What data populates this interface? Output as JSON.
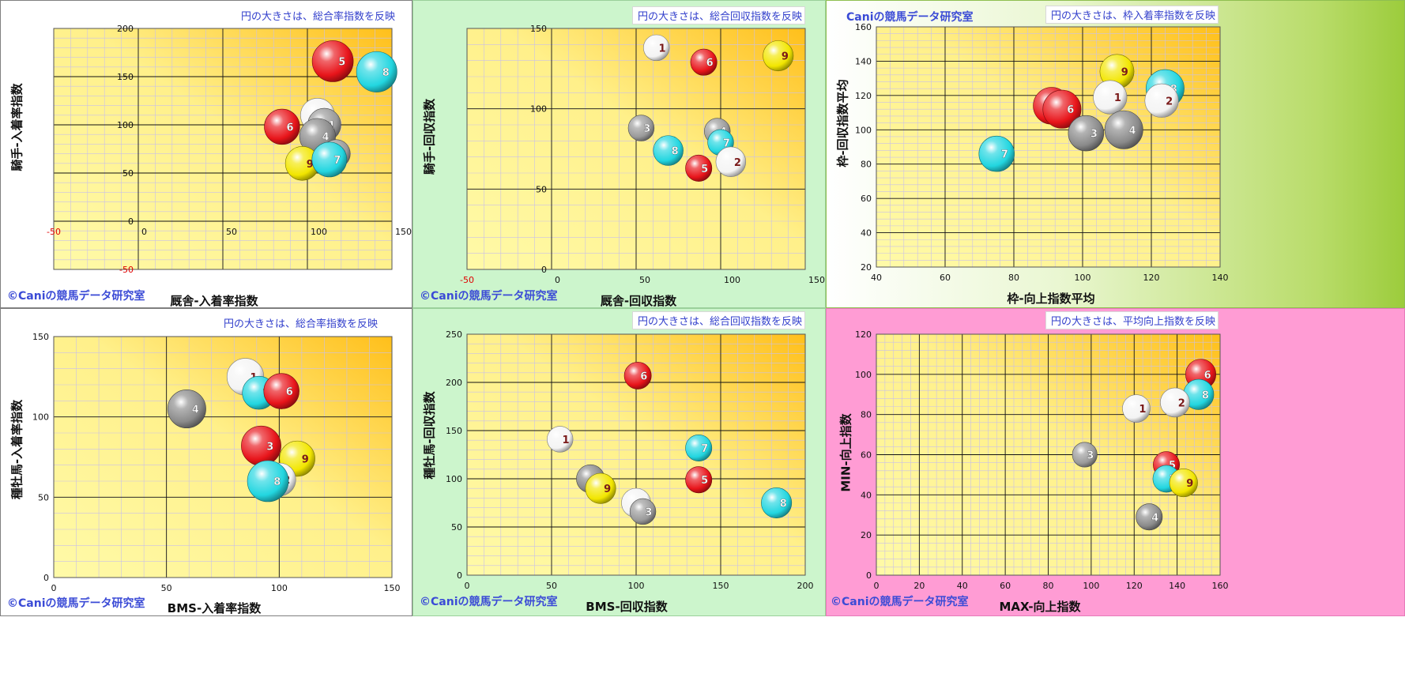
{
  "panels": [
    {
      "id": "p1",
      "note": "円の大きさは、総合率指数を反映",
      "copyright": "©Caniの競馬データ研究室",
      "chart_data": {
        "type": "bubble",
        "xlabel": "厩舎-入着率指数",
        "ylabel": "騎手-入着率指数",
        "xlim": [
          -50,
          150
        ],
        "ylim": [
          -50,
          200
        ],
        "x_ticks": [
          "-50",
          "0",
          "50",
          "100",
          "150"
        ],
        "y_ticks": [
          "-50",
          "0",
          "50",
          "100",
          "150",
          "200"
        ],
        "points": [
          {
            "label": "5",
            "x": 115,
            "y": 166,
            "size": 1.0,
            "color": "#e8141a"
          },
          {
            "label": "8",
            "x": 141,
            "y": 155,
            "size": 0.98,
            "color": "#22d6e0"
          },
          {
            "label": "2",
            "x": 106,
            "y": 110,
            "size": 0.75,
            "color": "#f4f4f4"
          },
          {
            "label": "1",
            "x": 110,
            "y": 100,
            "size": 0.72,
            "color": "#9a9a9a"
          },
          {
            "label": "4",
            "x": 106,
            "y": 88,
            "size": 0.82,
            "color": "#8a8a8a"
          },
          {
            "label": "6",
            "x": 85,
            "y": 98,
            "size": 0.8,
            "color": "#e8141a"
          },
          {
            "label": "9",
            "x": 97,
            "y": 60,
            "size": 0.75,
            "color": "#f2e600"
          },
          {
            "label": "3",
            "x": 117,
            "y": 70,
            "size": 0.55,
            "color": "#9a9a9a"
          },
          {
            "label": "7",
            "x": 113,
            "y": 64,
            "size": 0.78,
            "color": "#22d6e0"
          }
        ]
      }
    },
    {
      "id": "p2",
      "note": "円の大きさは、総合回収指数を反映",
      "copyright": "©Caniの競馬データ研究室",
      "chart_data": {
        "type": "bubble",
        "xlabel": "厩舎-回収指数",
        "ylabel": "騎手-回収指数",
        "xlim": [
          -50,
          150
        ],
        "ylim": [
          0,
          150
        ],
        "x_ticks": [
          "-50",
          "0",
          "50",
          "100",
          "150"
        ],
        "y_ticks": [
          "0",
          "50",
          "100",
          "150"
        ],
        "points": [
          {
            "label": "1",
            "x": 62,
            "y": 138,
            "size": 0.6,
            "color": "#f4f4f4"
          },
          {
            "label": "6",
            "x": 90,
            "y": 129,
            "size": 0.62,
            "color": "#e8141a"
          },
          {
            "label": "9",
            "x": 134,
            "y": 133,
            "size": 0.8,
            "color": "#f2e600"
          },
          {
            "label": "3",
            "x": 53,
            "y": 88,
            "size": 0.6,
            "color": "#9a9a9a"
          },
          {
            "label": "4",
            "x": 98,
            "y": 86,
            "size": 0.6,
            "color": "#9a9a9a"
          },
          {
            "label": "7",
            "x": 100,
            "y": 79,
            "size": 0.6,
            "color": "#22d6e0"
          },
          {
            "label": "8",
            "x": 69,
            "y": 74,
            "size": 0.78,
            "color": "#22d6e0"
          },
          {
            "label": "2",
            "x": 106,
            "y": 67,
            "size": 0.78,
            "color": "#f4f4f4"
          },
          {
            "label": "5",
            "x": 87,
            "y": 63,
            "size": 0.62,
            "color": "#e8141a"
          }
        ]
      }
    },
    {
      "id": "p3",
      "note": "円の大きさは、枠入着率指数を反映",
      "copyright": "Caniの競馬データ研究室",
      "chart_data": {
        "type": "bubble",
        "xlabel": "枠-向上指数平均",
        "ylabel": "枠-回収指数平均",
        "xlim": [
          40,
          140
        ],
        "ylim": [
          20,
          160
        ],
        "x_ticks": [
          "40",
          "60",
          "80",
          "100",
          "120",
          "140"
        ],
        "y_ticks": [
          "20",
          "40",
          "60",
          "80",
          "100",
          "120",
          "140",
          "160"
        ],
        "points": [
          {
            "label": "9",
            "x": 110,
            "y": 134,
            "size": 0.8,
            "color": "#f2e600"
          },
          {
            "label": "8",
            "x": 124,
            "y": 124,
            "size": 0.95,
            "color": "#22d6e0"
          },
          {
            "label": "1",
            "x": 108,
            "y": 119,
            "size": 0.78,
            "color": "#f4f4f4"
          },
          {
            "label": "2",
            "x": 123,
            "y": 117,
            "size": 0.78,
            "color": "#f4f4f4"
          },
          {
            "label": "5",
            "x": 91,
            "y": 114,
            "size": 0.9,
            "color": "#e8141a"
          },
          {
            "label": "6",
            "x": 94,
            "y": 112,
            "size": 0.95,
            "color": "#e8141a"
          },
          {
            "label": "3",
            "x": 101,
            "y": 98,
            "size": 0.85,
            "color": "#8a8a8a"
          },
          {
            "label": "4",
            "x": 112,
            "y": 100,
            "size": 0.95,
            "color": "#8a8a8a"
          },
          {
            "label": "7",
            "x": 75,
            "y": 86,
            "size": 0.85,
            "color": "#22d6e0"
          }
        ]
      }
    },
    {
      "id": "p4",
      "note": "円の大きさは、総合率指数を反映",
      "copyright": "©Caniの競馬データ研究室",
      "chart_data": {
        "type": "bubble",
        "xlabel": "BMS-入着率指数",
        "ylabel": "種牡馬-入着率指数",
        "xlim": [
          0,
          150
        ],
        "ylim": [
          0,
          150
        ],
        "x_ticks": [
          "0",
          "50",
          "100",
          "150"
        ],
        "y_ticks": [
          "0",
          "50",
          "100",
          "150"
        ],
        "points": [
          {
            "label": "1",
            "x": 85,
            "y": 125,
            "size": 0.85,
            "color": "#f4f4f4"
          },
          {
            "label": "7",
            "x": 91,
            "y": 115,
            "size": 0.72,
            "color": "#22d6e0"
          },
          {
            "label": "6",
            "x": 101,
            "y": 116,
            "size": 0.8,
            "color": "#e8141a"
          },
          {
            "label": "4",
            "x": 59,
            "y": 105,
            "size": 0.9,
            "color": "#8a8a8a"
          },
          {
            "label": "3",
            "x": 92,
            "y": 82,
            "size": 0.95,
            "color": "#e8141a"
          },
          {
            "label": "9",
            "x": 108,
            "y": 74,
            "size": 0.8,
            "color": "#f2e600"
          },
          {
            "label": "2",
            "x": 100,
            "y": 61,
            "size": 0.72,
            "color": "#f4f4f4"
          },
          {
            "label": "8",
            "x": 95,
            "y": 60,
            "size": 1.0,
            "color": "#22d6e0"
          }
        ]
      }
    },
    {
      "id": "p5",
      "note": "円の大きさは、総合回収指数を反映",
      "copyright": "©Caniの競馬データ研究室",
      "chart_data": {
        "type": "bubble",
        "xlabel": "BMS-回収指数",
        "ylabel": "種牡馬-回収指数",
        "xlim": [
          0,
          200
        ],
        "ylim": [
          0,
          250
        ],
        "x_ticks": [
          "0",
          "50",
          "100",
          "150",
          "200"
        ],
        "y_ticks": [
          "0",
          "50",
          "100",
          "150",
          "200",
          "250"
        ],
        "points": [
          {
            "label": "6",
            "x": 101,
            "y": 207,
            "size": 0.65,
            "color": "#e8141a"
          },
          {
            "label": "1",
            "x": 55,
            "y": 141,
            "size": 0.6,
            "color": "#f4f4f4"
          },
          {
            "label": "7",
            "x": 137,
            "y": 132,
            "size": 0.62,
            "color": "#22d6e0"
          },
          {
            "label": "5",
            "x": 137,
            "y": 99,
            "size": 0.62,
            "color": "#e8141a"
          },
          {
            "label": "4",
            "x": 73,
            "y": 100,
            "size": 0.7,
            "color": "#8a8a8a"
          },
          {
            "label": "9",
            "x": 79,
            "y": 90,
            "size": 0.8,
            "color": "#f2e600"
          },
          {
            "label": "2",
            "x": 100,
            "y": 75,
            "size": 0.75,
            "color": "#f4f4f4"
          },
          {
            "label": "3",
            "x": 104,
            "y": 66,
            "size": 0.6,
            "color": "#9a9a9a"
          },
          {
            "label": "8",
            "x": 183,
            "y": 75,
            "size": 0.8,
            "color": "#22d6e0"
          }
        ]
      }
    },
    {
      "id": "p6",
      "note": "円の大きさは、平均向上指数を反映",
      "copyright": "©Caniの競馬データ研究室",
      "chart_data": {
        "type": "bubble",
        "xlabel": "MAX-向上指数",
        "ylabel": "MIN-向上指数",
        "xlim": [
          0,
          160
        ],
        "ylim": [
          0,
          120
        ],
        "x_ticks": [
          "0",
          "20",
          "40",
          "60",
          "80",
          "100",
          "120",
          "140",
          "160"
        ],
        "y_ticks": [
          "0",
          "20",
          "40",
          "60",
          "80",
          "100",
          "120"
        ],
        "points": [
          {
            "label": "6",
            "x": 151,
            "y": 100,
            "size": 0.8,
            "color": "#e8141a"
          },
          {
            "label": "8",
            "x": 150,
            "y": 90,
            "size": 0.8,
            "color": "#22d6e0"
          },
          {
            "label": "2",
            "x": 139,
            "y": 86,
            "size": 0.75,
            "color": "#f4f4f4"
          },
          {
            "label": "1",
            "x": 121,
            "y": 83,
            "size": 0.68,
            "color": "#f4f4f4"
          },
          {
            "label": "3",
            "x": 97,
            "y": 60,
            "size": 0.55,
            "color": "#9a9a9a"
          },
          {
            "label": "5",
            "x": 135,
            "y": 55,
            "size": 0.62,
            "color": "#e8141a"
          },
          {
            "label": "7",
            "x": 135,
            "y": 48,
            "size": 0.65,
            "color": "#22d6e0"
          },
          {
            "label": "9",
            "x": 143,
            "y": 46,
            "size": 0.7,
            "color": "#f2e600"
          },
          {
            "label": "4",
            "x": 127,
            "y": 29,
            "size": 0.62,
            "color": "#8a8a8a"
          }
        ]
      }
    }
  ]
}
